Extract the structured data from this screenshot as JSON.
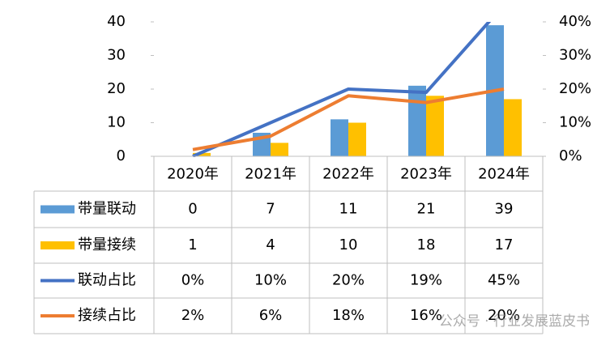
{
  "chart_data": {
    "type": "bar",
    "categories": [
      "2020年",
      "2021年",
      "2022年",
      "2023年",
      "2024年"
    ],
    "series": [
      {
        "name": "带量联动",
        "type": "bar",
        "color": "#5b9bd5",
        "values": [
          0,
          7,
          11,
          21,
          39
        ]
      },
      {
        "name": "带量接续",
        "type": "bar",
        "color": "#ffc000",
        "values": [
          1,
          4,
          10,
          18,
          17
        ]
      },
      {
        "name": "联动占比",
        "type": "line",
        "axis": "y2",
        "color": "#4472c4",
        "values": [
          0,
          10,
          20,
          19,
          45
        ],
        "value_labels": [
          "0%",
          "10%",
          "20%",
          "19%",
          "45%"
        ]
      },
      {
        "name": "接续占比",
        "type": "line",
        "axis": "y2",
        "color": "#ed7d31",
        "values": [
          2,
          6,
          18,
          16,
          20
        ],
        "value_labels": [
          "2%",
          "6%",
          "18%",
          "16%",
          "20%"
        ]
      }
    ],
    "ylim": [
      0,
      40
    ],
    "yticks": [
      0,
      10,
      20,
      30,
      40
    ],
    "y2lim": [
      0,
      40
    ],
    "y2ticks": [
      {
        "value": 0,
        "label": "0%"
      },
      {
        "value": 10,
        "label": "10%"
      },
      {
        "value": 20,
        "label": "20%"
      },
      {
        "value": 30,
        "label": "30%"
      },
      {
        "value": 40,
        "label": "40%"
      }
    ],
    "watermark": "公众号 · 行业发展蓝皮书"
  }
}
